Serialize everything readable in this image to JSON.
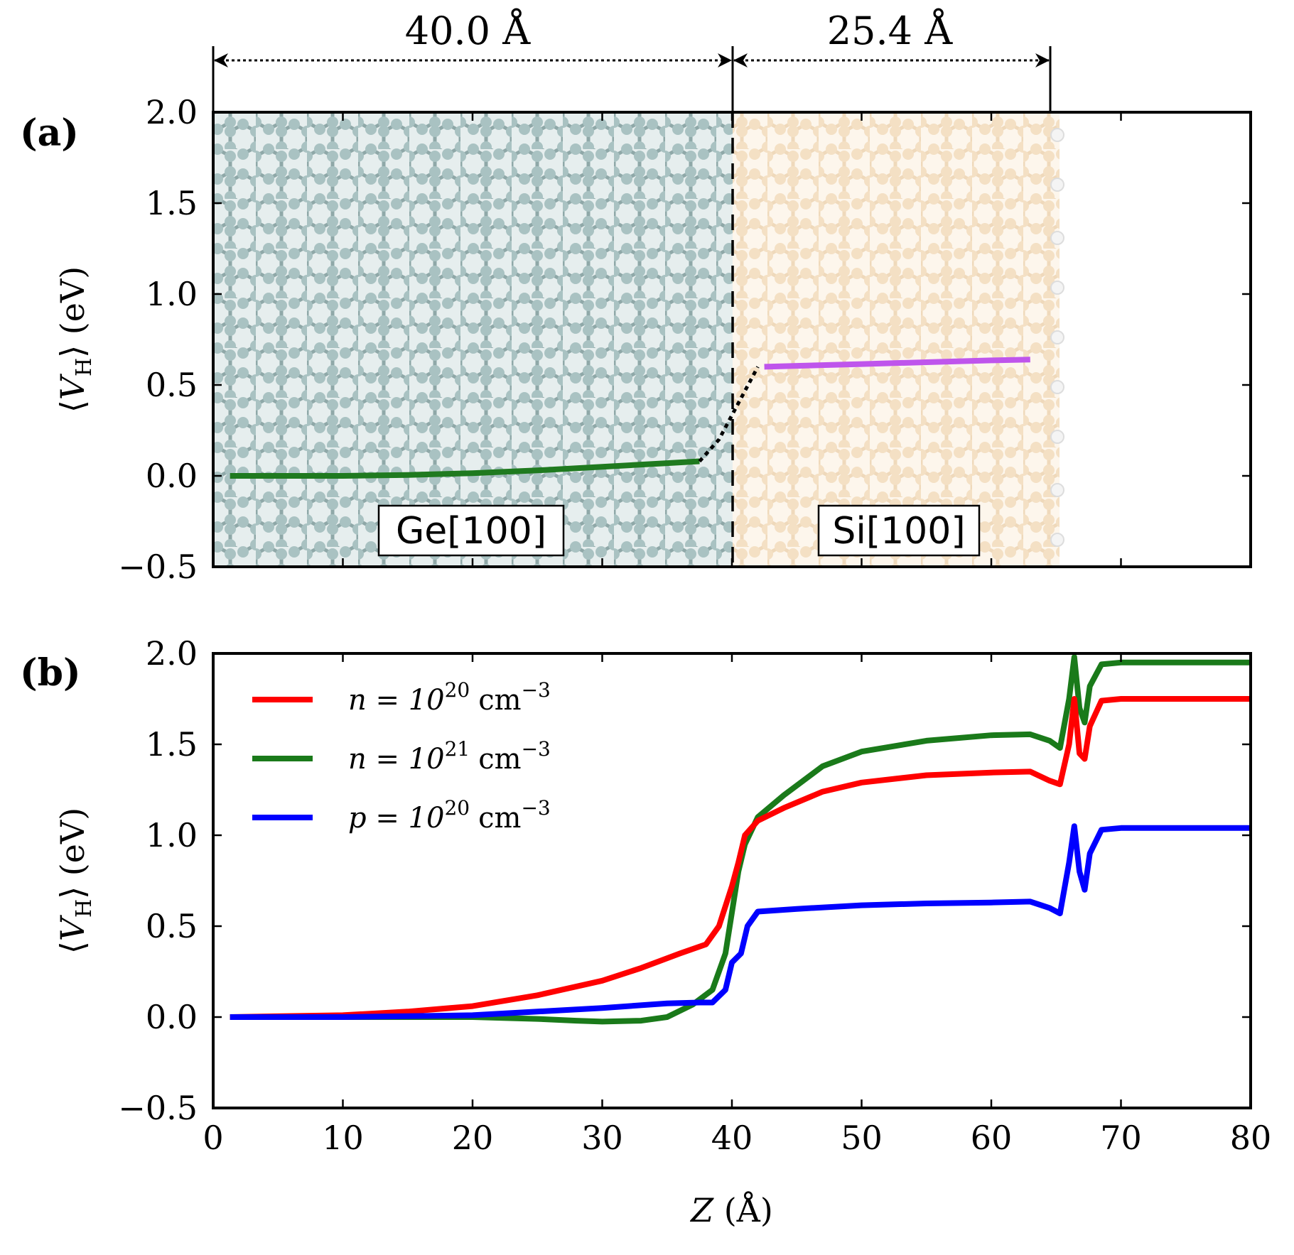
{
  "figure": {
    "panel_a_label": "(a)",
    "panel_b_label": "(b)",
    "ylabel": "⟨V_H⟩ (eV)",
    "xlabel": "Z (Å)",
    "dim_left": "40.0 Å",
    "dim_right": "25.4 Å",
    "region_ge": "Ge[100]",
    "region_si": "Si[100]"
  },
  "chart_data": [
    {
      "panel": "(a)",
      "type": "line",
      "title": "",
      "xlabel": "",
      "ylabel": "⟨V_H⟩ (eV)",
      "xlim": [
        0,
        80
      ],
      "ylim": [
        -0.5,
        2.0
      ],
      "yticks": [
        "−0.5",
        "0.0",
        "0.5",
        "1.0",
        "1.5",
        "2.0"
      ],
      "interface_z": 40.0,
      "ge_thickness": "40.0 Å",
      "si_thickness": "25.4 Å",
      "series": [
        {
          "name": "Ge bulk average",
          "color": "#1f7a1f",
          "style": "solid",
          "x": [
            1.3,
            5,
            10,
            15,
            20,
            25,
            30,
            35,
            37.5
          ],
          "y": [
            0.0,
            0.0,
            0.0,
            0.005,
            0.015,
            0.03,
            0.05,
            0.07,
            0.08
          ]
        },
        {
          "name": "transition",
          "color": "#000000",
          "style": "dotted",
          "x": [
            37.5,
            39.0,
            40.5,
            42.0
          ],
          "y": [
            0.08,
            0.2,
            0.4,
            0.6
          ]
        },
        {
          "name": "Si bulk average",
          "color": "#bf55ec",
          "style": "solid",
          "x": [
            42.5,
            50,
            55,
            60,
            63
          ],
          "y": [
            0.6,
            0.615,
            0.625,
            0.635,
            0.64
          ]
        }
      ]
    },
    {
      "panel": "(b)",
      "type": "line",
      "title": "",
      "xlabel": "Z (Å)",
      "ylabel": "⟨V_H⟩ (eV)",
      "xlim": [
        0,
        80
      ],
      "ylim": [
        -0.5,
        2.0
      ],
      "xticks": [
        "0",
        "10",
        "20",
        "30",
        "40",
        "50",
        "60",
        "70",
        "80"
      ],
      "yticks": [
        "−0.5",
        "0.0",
        "0.5",
        "1.0",
        "1.5",
        "2.0"
      ],
      "legend": "top-left",
      "series": [
        {
          "name": "n = 10^20 cm^−3",
          "label_main": "n = 10",
          "label_exp": "20",
          "label_unit": "cm",
          "label_unit_exp": "−3",
          "color": "#ff0000",
          "x": [
            1.3,
            10,
            15,
            20,
            25,
            30,
            33,
            36,
            38,
            39,
            40,
            40.5,
            41,
            42,
            44,
            47,
            50,
            55,
            60,
            63,
            64.5,
            65.3,
            66.0,
            66.4,
            66.8,
            67.2,
            67.6,
            68.5,
            70,
            80
          ],
          "y": [
            0.0,
            0.01,
            0.03,
            0.06,
            0.12,
            0.2,
            0.27,
            0.35,
            0.4,
            0.5,
            0.72,
            0.85,
            1.0,
            1.08,
            1.15,
            1.24,
            1.29,
            1.33,
            1.345,
            1.35,
            1.3,
            1.28,
            1.5,
            1.75,
            1.45,
            1.42,
            1.6,
            1.74,
            1.75,
            1.75
          ]
        },
        {
          "name": "n = 10^21 cm^−3",
          "label_main": "n = 10",
          "label_exp": "21",
          "label_unit": "cm",
          "label_unit_exp": "−3",
          "color": "#1a7a1a",
          "x": [
            1.3,
            10,
            20,
            25,
            28,
            30,
            33,
            35,
            37,
            38.5,
            39.5,
            40.5,
            41,
            42,
            44,
            47,
            50,
            55,
            60,
            63,
            64.5,
            65.3,
            66.0,
            66.4,
            66.8,
            67.2,
            67.6,
            68.5,
            70,
            80
          ],
          "y": [
            0.0,
            0.0,
            0.0,
            -0.01,
            -0.02,
            -0.025,
            -0.02,
            0.0,
            0.07,
            0.15,
            0.35,
            0.8,
            0.95,
            1.1,
            1.22,
            1.38,
            1.46,
            1.52,
            1.55,
            1.555,
            1.52,
            1.48,
            1.75,
            1.98,
            1.7,
            1.62,
            1.82,
            1.94,
            1.95,
            1.95
          ]
        },
        {
          "name": "p = 10^20 cm^−3",
          "label_main": "p = 10",
          "label_exp": "20",
          "label_unit": "cm",
          "label_unit_exp": "−3",
          "color": "#0000ff",
          "x": [
            1.3,
            10,
            20,
            25,
            30,
            35,
            37.5,
            38.5,
            39.5,
            40,
            40.7,
            41.2,
            42,
            45,
            50,
            55,
            60,
            63,
            64.5,
            65.3,
            66.0,
            66.4,
            66.8,
            67.2,
            67.6,
            68.5,
            70,
            80
          ],
          "y": [
            0.0,
            0.0,
            0.01,
            0.03,
            0.05,
            0.075,
            0.08,
            0.08,
            0.15,
            0.3,
            0.35,
            0.5,
            0.58,
            0.595,
            0.615,
            0.625,
            0.63,
            0.635,
            0.6,
            0.57,
            0.85,
            1.05,
            0.8,
            0.7,
            0.9,
            1.03,
            1.04,
            1.04
          ]
        }
      ]
    }
  ]
}
